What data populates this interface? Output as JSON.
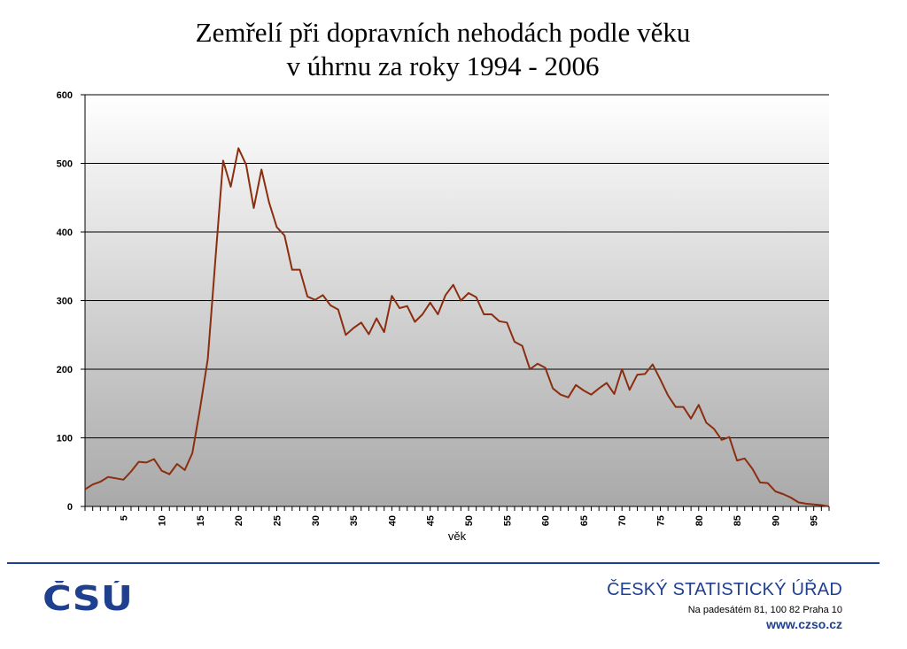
{
  "chart_data": {
    "type": "line",
    "title_line1": "Zemřelí při dopravních nehodách podle věku",
    "title_line2": "v úhrnu za roky 1994 - 2006",
    "xlabel": "věk",
    "ylabel": "",
    "ylim": [
      0,
      600
    ],
    "yticks": [
      0,
      100,
      200,
      300,
      400,
      500,
      600
    ],
    "xlim": [
      0,
      97
    ],
    "xticks": [
      5,
      10,
      15,
      20,
      25,
      30,
      35,
      40,
      45,
      50,
      55,
      60,
      65,
      70,
      75,
      80,
      85,
      90,
      95
    ],
    "grid": true,
    "line_color": "#8b2e0f",
    "series": [
      {
        "x": [
          0,
          1,
          2,
          3,
          4,
          5,
          6,
          7,
          8,
          9,
          10,
          11,
          12,
          13,
          14,
          15,
          16,
          17,
          18,
          19,
          20,
          21,
          22,
          23,
          24,
          25,
          26,
          27,
          28,
          29,
          30,
          31,
          32,
          33,
          34,
          35,
          36,
          37,
          38,
          39,
          40,
          41,
          42,
          43,
          44,
          45,
          46,
          47,
          48,
          49,
          50,
          51,
          52,
          53,
          54,
          55,
          56,
          57,
          58,
          59,
          60,
          61,
          62,
          63,
          64,
          65,
          66,
          67,
          68,
          69,
          70,
          71,
          72,
          73,
          74,
          75,
          76,
          77,
          78,
          79,
          80,
          81,
          82,
          83,
          84,
          85,
          86,
          87,
          88,
          89,
          90,
          91,
          92,
          93,
          94,
          95,
          96,
          97
        ],
        "values": [
          25,
          32,
          36,
          43,
          41,
          39,
          51,
          65,
          64,
          69,
          52,
          47,
          62,
          53,
          78,
          143,
          215,
          360,
          504,
          466,
          522,
          498,
          435,
          491,
          443,
          407,
          395,
          345,
          345,
          306,
          301,
          308,
          293,
          287,
          250,
          260,
          268,
          251,
          274,
          254,
          307,
          289,
          292,
          269,
          280,
          297,
          280,
          308,
          323,
          300,
          311,
          305,
          280,
          280,
          270,
          268,
          240,
          234,
          200,
          208,
          202,
          172,
          163,
          159,
          177,
          169,
          163,
          172,
          180,
          164,
          200,
          170,
          192,
          193,
          207,
          185,
          162,
          145,
          145,
          128,
          148,
          122,
          113,
          97,
          101,
          67,
          70,
          55,
          35,
          34,
          22,
          18,
          13,
          6,
          4,
          3,
          2,
          0
        ]
      }
    ]
  },
  "footer": {
    "logo_text": "ČSÚ",
    "org_name": "ČESKÝ STATISTICKÝ ÚŘAD",
    "address": "Na padesátém 81, 100 82  Praha 10",
    "web": "www.czso.cz"
  },
  "colors": {
    "brand": "#1f3f8f",
    "line": "#8b2e0f"
  }
}
